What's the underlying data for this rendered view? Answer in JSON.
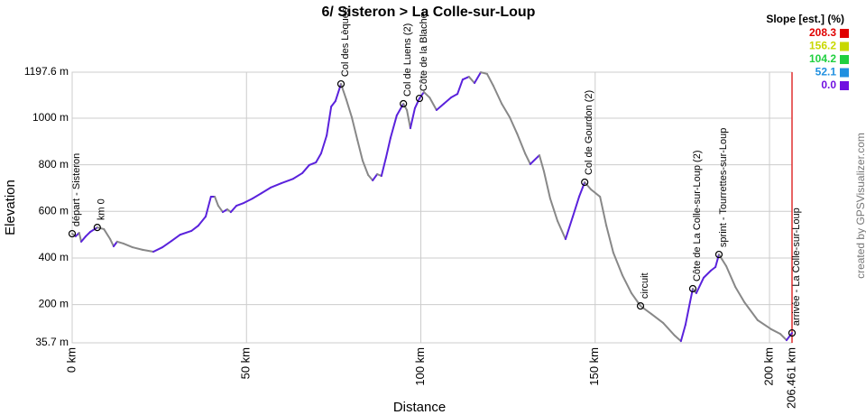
{
  "chart_data": {
    "type": "line",
    "title": "6/ Sisteron > La Colle-sur-Loup",
    "xlabel": "Distance",
    "ylabel": "Elevation",
    "credit": "created by GPSVisualizer.com",
    "x": [
      0,
      1,
      2,
      2.6,
      3.9,
      5.2,
      7.2,
      9.1,
      10.9,
      11.9,
      12.9,
      14.7,
      17.3,
      20.2,
      23.3,
      25.9,
      28.5,
      31,
      34.2,
      36.2,
      38.3,
      39.8,
      40.9,
      41.9,
      43.2,
      44.5,
      45.5,
      47.1,
      49.2,
      51.7,
      54.3,
      56.9,
      60,
      63.4,
      66,
      68,
      69.9,
      71.4,
      73,
      74.3,
      75.5,
      77.1,
      78.6,
      80.2,
      81.8,
      83.3,
      84.9,
      86.2,
      87.5,
      88.7,
      90,
      91.3,
      93.1,
      95,
      96,
      97,
      98.3,
      99.6,
      100.9,
      102.5,
      104.5,
      106.6,
      108.7,
      110.5,
      112,
      113.8,
      115.4,
      117.2,
      119,
      120.8,
      123.2,
      125.5,
      127.6,
      129.9,
      131.4,
      134,
      135.3,
      137.1,
      139.2,
      141.5,
      143.6,
      145.4,
      147,
      148.8,
      151.4,
      153.2,
      155.2,
      157.8,
      160.4,
      163,
      166.1,
      169.5,
      172.8,
      174.6,
      175.9,
      177.2,
      178,
      179,
      181.1,
      183.2,
      184.5,
      185.5,
      187.6,
      190.2,
      192.8,
      196.6,
      200.5,
      203.1,
      204.9,
      206.461
    ],
    "values": [
      504,
      493,
      508,
      470,
      493,
      512,
      531,
      524,
      481,
      450,
      470,
      462,
      446,
      435,
      427,
      446,
      473,
      500,
      516,
      539,
      578,
      663,
      663,
      624,
      597,
      609,
      597,
      624,
      636,
      655,
      678,
      702,
      721,
      740,
      764,
      799,
      810,
      849,
      926,
      1050,
      1073,
      1147,
      1081,
      1004,
      907,
      818,
      756,
      733,
      760,
      752,
      830,
      915,
      1012,
      1062,
      1035,
      957,
      1043,
      1085,
      1112,
      1089,
      1035,
      1062,
      1089,
      1104,
      1166,
      1178,
      1151,
      1197,
      1190,
      1139,
      1062,
      1004,
      934,
      849,
      803,
      841,
      772,
      655,
      559,
      481,
      578,
      663,
      725,
      694,
      663,
      539,
      423,
      326,
      249,
      194,
      160,
      121,
      67,
      43,
      113,
      210,
      268,
      249,
      315,
      346,
      361,
      415,
      365,
      276,
      210,
      133,
      94,
      74,
      47,
      78
    ],
    "color": "#5a22dc",
    "descent_color": "#888888",
    "finish_color": "#e03030",
    "xlim": [
      0,
      206.461
    ],
    "ylim": [
      35.7,
      1197.6
    ],
    "xticks": [
      {
        "value": 0,
        "label": "0 km"
      },
      {
        "value": 50,
        "label": "50 km"
      },
      {
        "value": 100,
        "label": "100 km"
      },
      {
        "value": 150,
        "label": "150 km"
      },
      {
        "value": 200,
        "label": "200 km"
      },
      {
        "value": 206.461,
        "label": "206.461 km"
      }
    ],
    "yticks": [
      {
        "value": 35.7,
        "label": "35.7 m"
      },
      {
        "value": 200,
        "label": "200 m"
      },
      {
        "value": 400,
        "label": "400 m"
      },
      {
        "value": 600,
        "label": "600 m"
      },
      {
        "value": 800,
        "label": "800 m"
      },
      {
        "value": 1000,
        "label": "1000 m"
      },
      {
        "value": 1197.6,
        "label": "1197.6 m"
      }
    ],
    "grid": true,
    "waypoints": [
      {
        "name": "départ - Sisteron",
        "x": 0,
        "value": 504
      },
      {
        "name": "km 0",
        "x": 7.2,
        "value": 531
      },
      {
        "name": "Col des Lèques",
        "x": 77.1,
        "value": 1147
      },
      {
        "name": "Col de Luens (2)",
        "x": 95,
        "value": 1062
      },
      {
        "name": "Côte de la Blache",
        "x": 99.6,
        "value": 1085
      },
      {
        "name": "Col de Gourdon (2)",
        "x": 147,
        "value": 725
      },
      {
        "name": "circuit",
        "x": 163,
        "value": 194
      },
      {
        "name": "Côte de La Colle-sur-Loup (2)",
        "x": 178,
        "value": 268
      },
      {
        "name": "sprint - Tourrettes-sur-Loup",
        "x": 185.5,
        "value": 415
      },
      {
        "name": "arrivée - La Colle-sur-Loup",
        "x": 206.461,
        "value": 78
      }
    ],
    "slope_legend": {
      "title": "Slope [est.] (%)",
      "items": [
        {
          "value": 208.3,
          "color": "#e00000"
        },
        {
          "value": 156.2,
          "color": "#c8d800"
        },
        {
          "value": 104.2,
          "color": "#20d040"
        },
        {
          "value": 52.1,
          "color": "#2090e0"
        },
        {
          "value": 0,
          "label": "0.0",
          "color": "#7010e0"
        }
      ]
    }
  }
}
